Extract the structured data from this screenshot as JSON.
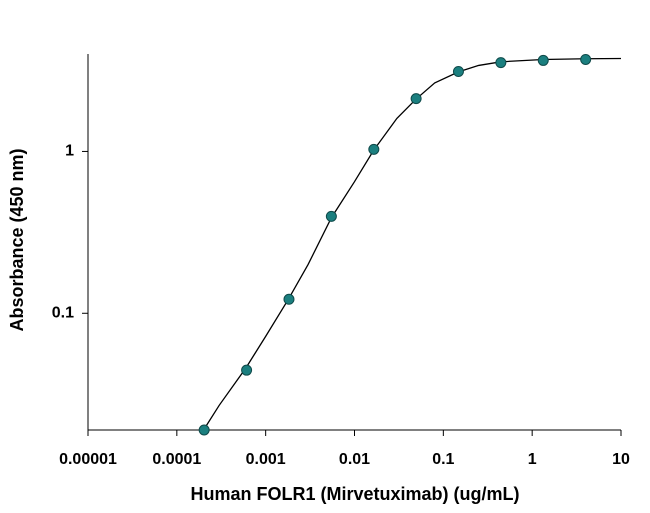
{
  "chart_data": {
    "type": "scatter",
    "xlabel": "Human FOLR1 (Mirvetuximab) (ug/mL)",
    "ylabel": "Absorbance (450 nm)",
    "xscale": "log",
    "yscale": "log",
    "xlim": [
      1e-05,
      10
    ],
    "ylim": [
      0.019,
      4
    ],
    "xticks": [
      1e-05,
      0.0001,
      0.001,
      0.01,
      0.1,
      1,
      10
    ],
    "yticks": [
      0.1,
      1
    ],
    "series": [
      {
        "style": "markers",
        "color": "#1b7f7f",
        "x": [
          0.000203,
          0.00061,
          0.00183,
          0.00549,
          0.0165,
          0.0494,
          0.148,
          0.444,
          1.333,
          4
        ],
        "values": [
          0.019,
          0.0445,
          0.122,
          0.397,
          1.03,
          2.12,
          3.12,
          3.54,
          3.65,
          3.7
        ]
      },
      {
        "style": "line",
        "color": "#000000",
        "x": [
          0.0002,
          0.0003,
          0.0006,
          0.001,
          0.0018,
          0.003,
          0.0055,
          0.01,
          0.0165,
          0.03,
          0.049,
          0.08,
          0.148,
          0.25,
          0.444,
          1.33,
          4,
          10
        ],
        "values": [
          0.019,
          0.027,
          0.046,
          0.072,
          0.122,
          0.2,
          0.39,
          0.65,
          1.02,
          1.6,
          2.1,
          2.65,
          3.1,
          3.4,
          3.58,
          3.7,
          3.74,
          3.75
        ]
      }
    ]
  }
}
